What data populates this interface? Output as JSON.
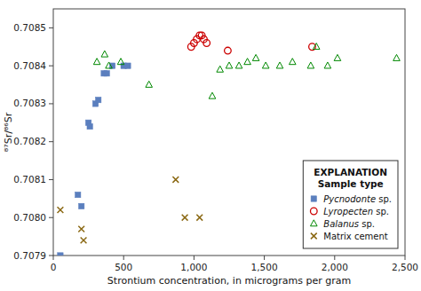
{
  "chart_data": {
    "type": "scatter",
    "xlabel": "Strontium concentration, in micrograms per gram",
    "ylabel": "⁸⁷Sr/⁸⁶Sr",
    "xlim": [
      0,
      2500
    ],
    "ylim": [
      0.7079,
      0.70855
    ],
    "xticks": [
      0,
      500,
      {
        "value": 1000,
        "label": "1,000"
      },
      {
        "value": 1500,
        "label": "1,500"
      },
      {
        "value": 2000,
        "label": "2,000"
      },
      {
        "value": 2500,
        "label": "2,500"
      }
    ],
    "yticks": [
      0.7079,
      {
        "value": 0.708,
        "label": "0.7080"
      },
      0.7081,
      0.7082,
      0.7083,
      0.7084,
      0.7085
    ],
    "grid": false,
    "legend": "lower right",
    "legend_title": [
      "EXPLANATION",
      "Sample type"
    ],
    "series": [
      {
        "name": "Pycnodonte sp.",
        "color": "#5b7fbe",
        "marker": "square",
        "x": [
          50,
          175,
          200,
          250,
          260,
          300,
          320,
          360,
          380,
          420,
          500,
          530
        ],
        "values": [
          0.7079,
          0.70806,
          0.70803,
          0.70825,
          0.70824,
          0.7083,
          0.70831,
          0.70838,
          0.70838,
          0.7084,
          0.7084,
          0.7084
        ]
      },
      {
        "name": "Lyropecten sp.",
        "color": "#cc0000",
        "marker": "circle",
        "x": [
          980,
          1000,
          1020,
          1040,
          1055,
          1070,
          1090,
          1240,
          1840
        ],
        "values": [
          0.70845,
          0.70846,
          0.70847,
          0.70848,
          0.70848,
          0.70847,
          0.70846,
          0.70844,
          0.70845
        ]
      },
      {
        "name": "Balanus sp.",
        "color": "#008800",
        "marker": "triangle",
        "x": [
          310,
          365,
          395,
          480,
          680,
          1130,
          1185,
          1250,
          1320,
          1380,
          1440,
          1510,
          1610,
          1700,
          1830,
          1870,
          1950,
          2020,
          2440
        ],
        "values": [
          0.70841,
          0.70843,
          0.7084,
          0.70841,
          0.70835,
          0.70832,
          0.70839,
          0.7084,
          0.7084,
          0.70841,
          0.70842,
          0.7084,
          0.7084,
          0.70841,
          0.7084,
          0.70845,
          0.7084,
          0.70842,
          0.70842
        ]
      },
      {
        "name": "Matrix cement",
        "color": "#8B6914",
        "marker": "x",
        "x": [
          50,
          200,
          215,
          870,
          935,
          1040
        ],
        "values": [
          0.70802,
          0.70797,
          0.70794,
          0.7081,
          0.708,
          0.708
        ]
      }
    ]
  }
}
